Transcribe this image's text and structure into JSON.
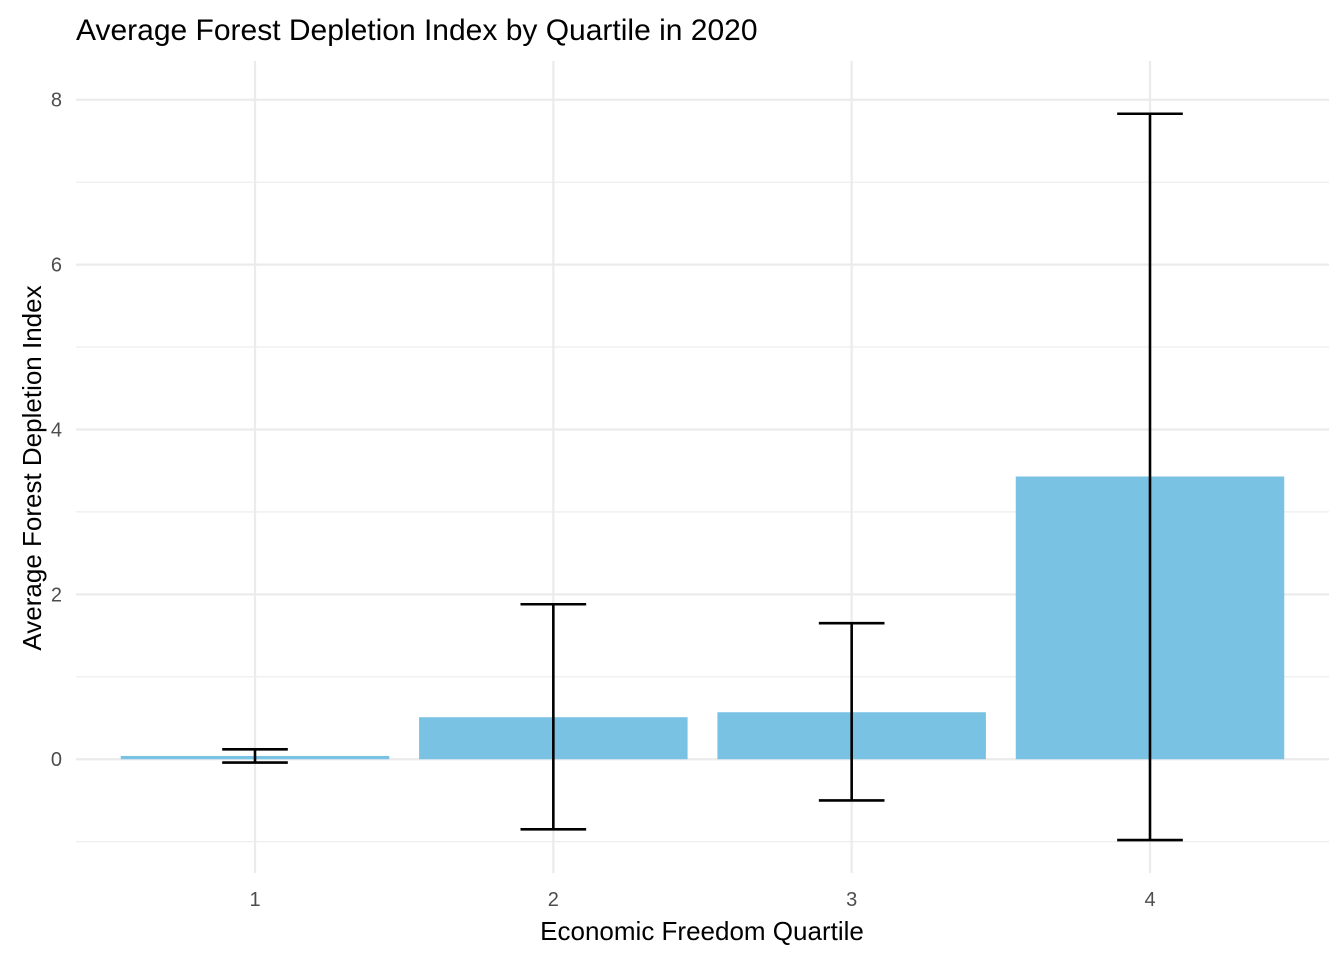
{
  "chart_data": {
    "type": "bar",
    "title": "Average Forest Depletion Index by Quartile in 2020",
    "xlabel": "Economic Freedom Quartile",
    "ylabel": "Average Forest Depletion Index",
    "categories": [
      "1",
      "2",
      "3",
      "4"
    ],
    "values": [
      0.04,
      0.51,
      0.57,
      3.43
    ],
    "error_low": [
      -0.04,
      -0.85,
      -0.5,
      -0.98
    ],
    "error_high": [
      0.12,
      1.88,
      1.65,
      7.83
    ],
    "yticks": [
      0,
      2,
      4,
      6,
      8
    ],
    "ylim": [
      -1.38,
      8.47
    ],
    "grid": true,
    "bar_color": "#7ac2e4",
    "error_color": "#000000"
  }
}
